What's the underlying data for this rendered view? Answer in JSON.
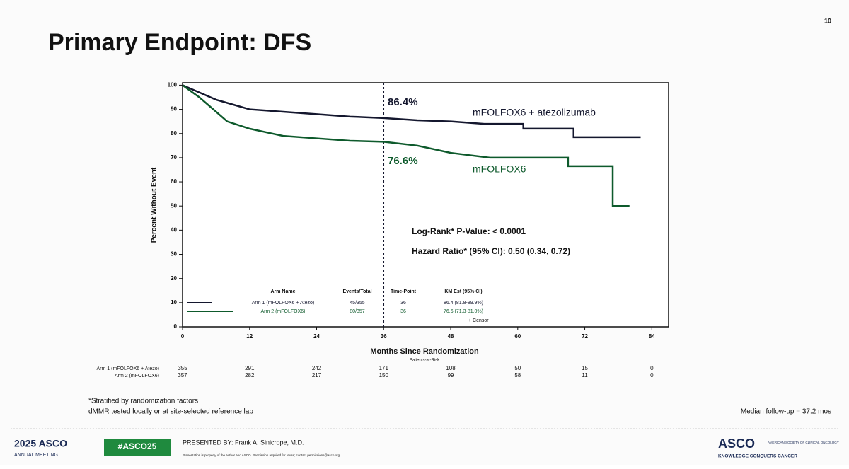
{
  "slide": {
    "title": "Primary Endpoint: DFS",
    "page_number": "10",
    "footnotes": [
      "*Stratified by randomization factors",
      "dMMR tested locally or at site-selected reference lab"
    ],
    "median_follow_up": "Median follow-up = 37.2 mos",
    "footer": {
      "meeting_year": "2025 ASCO",
      "meeting_name": "ANNUAL MEETING",
      "hashtag": "#ASCO25",
      "presenter": "PRESENTED BY: Frank A. Sinicrope, M.D.",
      "notice": "Presentation is property of the author and ASCO. Permission required for reuse; contact permissions@asco.org.",
      "logo": "ASCO",
      "society": "AMERICAN SOCIETY OF CLINICAL ONCOLOGY",
      "tagline": "KNOWLEDGE CONQUERS CANCER"
    }
  },
  "chart_data": {
    "type": "line",
    "y_label": "Percent Without Event",
    "x_label": "Months Since Randomization",
    "xlim": [
      0,
      87
    ],
    "ylim": [
      0,
      101
    ],
    "xticks": [
      0,
      12,
      24,
      36,
      48,
      60,
      72,
      84
    ],
    "yticks": [
      0,
      10,
      20,
      30,
      40,
      50,
      60,
      70,
      80,
      90,
      100
    ],
    "reference_x": 36,
    "series": [
      {
        "name": "Arm 1 (mFOLFOX6 + Atezo)",
        "color": "#14172e",
        "x": [
          0,
          3,
          6,
          9,
          12,
          18,
          24,
          30,
          36,
          42,
          48,
          54,
          61,
          61,
          70,
          70,
          82
        ],
        "values": [
          100,
          97,
          94,
          92,
          90,
          89,
          88,
          87,
          86.4,
          85.5,
          85,
          84,
          84,
          82,
          82,
          78.5,
          78.5
        ]
      },
      {
        "name": "Arm 2 (mFOLFOX6)",
        "color": "#0e5a2c",
        "x": [
          0,
          3,
          6,
          8,
          12,
          18,
          24,
          30,
          36,
          42,
          48,
          55,
          69,
          69,
          77,
          77,
          80
        ],
        "values": [
          100,
          95,
          89,
          85,
          82,
          79,
          78,
          77,
          76.6,
          75,
          72,
          70,
          70,
          66.5,
          66.5,
          50,
          50
        ]
      }
    ],
    "annotations": {
      "arm1_estimate": "86.4%",
      "arm1_label": "mFOLFOX6 + atezolizumab",
      "arm2_estimate": "76.6%",
      "arm2_label": "mFOLFOX6",
      "log_rank": "Log-Rank* P-Value: < 0.0001",
      "hazard_ratio": "Hazard Ratio* (95% CI): 0.50 (0.34, 0.72)"
    },
    "legend_table": {
      "columns": [
        "Arm Name",
        "Events/Total",
        "Time-Point",
        "KM Est (95% CI)"
      ],
      "rows": [
        [
          "45/355",
          "36",
          "86.4 (81.8-89.9%)"
        ],
        [
          "80/357",
          "36",
          "76.6 (71.3-81.0%)"
        ]
      ],
      "censor": "+ Censor"
    },
    "risk_title": "Patients-at-Risk",
    "at_risk": [
      [
        355,
        291,
        242,
        171,
        108,
        50,
        15,
        0
      ],
      [
        357,
        282,
        217,
        150,
        99,
        58,
        11,
        0
      ]
    ]
  }
}
